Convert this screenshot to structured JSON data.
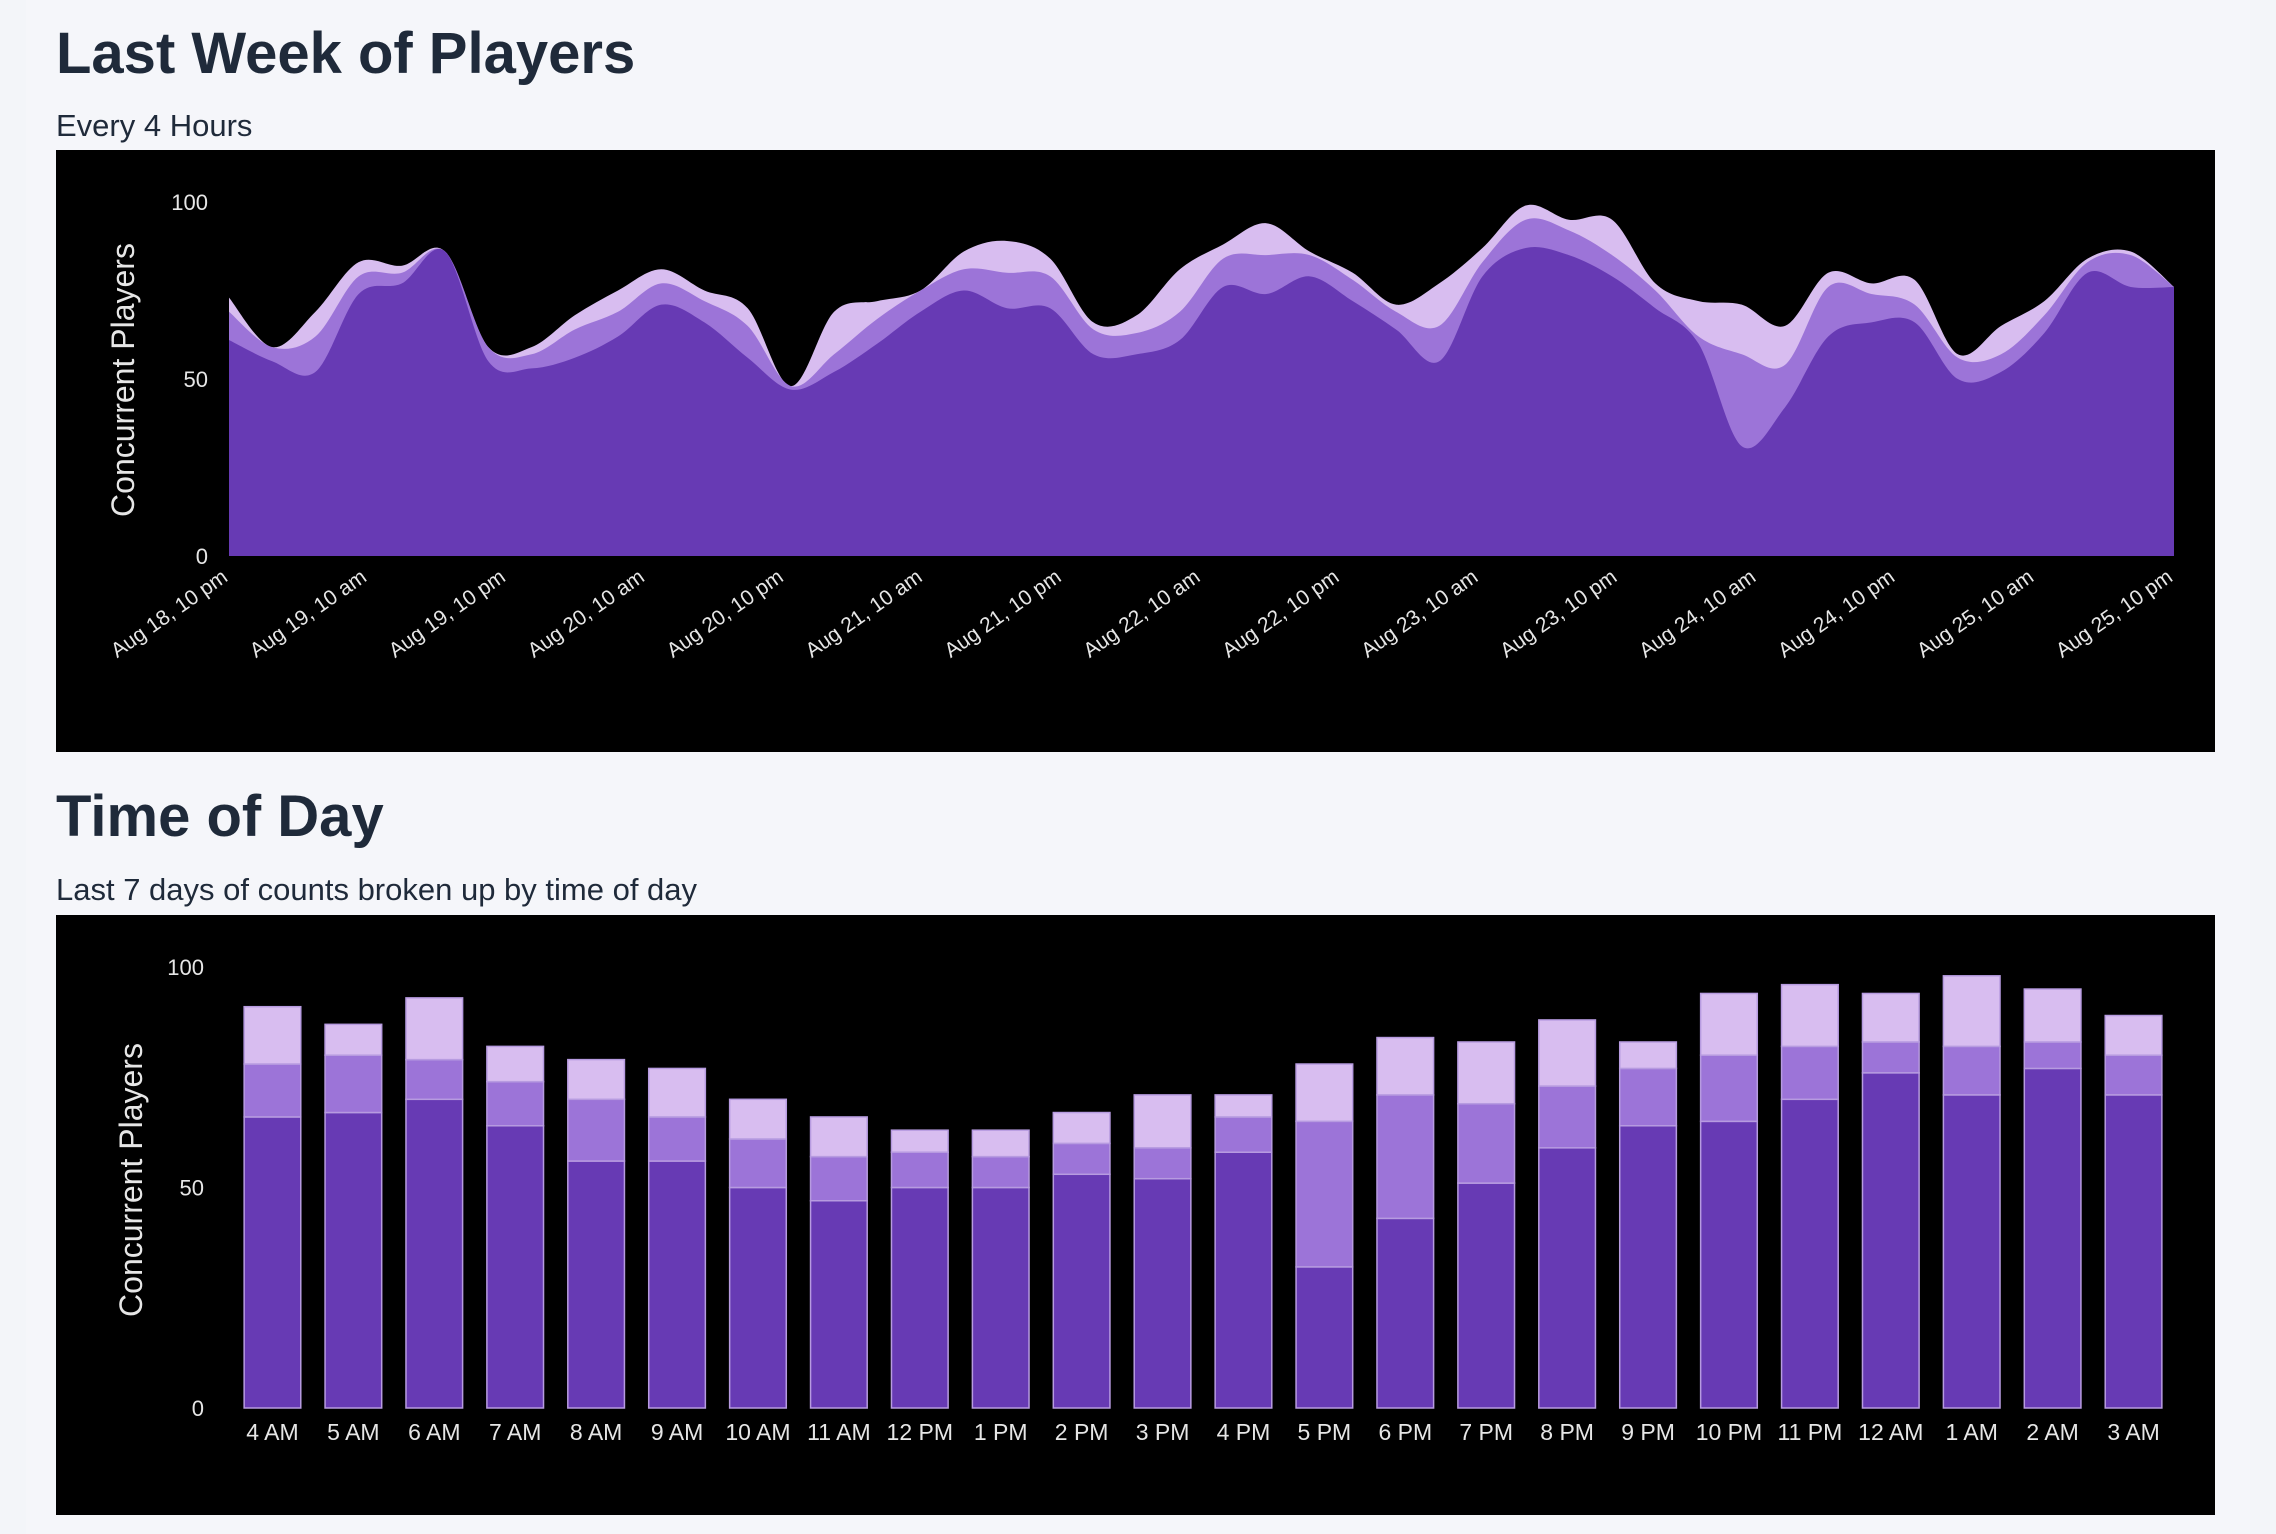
{
  "sections": {
    "week": {
      "title": "Last Week of Players",
      "subtitle": "Every 4 Hours"
    },
    "tod": {
      "title": "Time of Day",
      "subtitle": "Last 7 days of counts broken up by time of day"
    }
  },
  "colors": {
    "panel_bg": "#000000",
    "base": "#673ab4",
    "mid": "#9c74d8",
    "top": "#d8bdf0",
    "axis_text": "#e6e6e6"
  },
  "chart_data": [
    {
      "type": "area",
      "stacked": true,
      "ylabel": "Concurrent Players",
      "ylim": [
        0,
        100
      ],
      "yticks": [
        0,
        50,
        100
      ],
      "grid": false,
      "x_ticks": [
        "Aug 18, 10 pm",
        "Aug 19, 10 am",
        "Aug 19, 10 pm",
        "Aug 20, 10 am",
        "Aug 20, 10 pm",
        "Aug 21, 10 am",
        "Aug 21, 10 pm",
        "Aug 22, 10 am",
        "Aug 22, 10 pm",
        "Aug 23, 10 am",
        "Aug 23, 10 pm",
        "Aug 24, 10 am",
        "Aug 24, 10 pm",
        "Aug 25, 10 am",
        "Aug 25, 10 pm"
      ],
      "x_ticks_rotation": -35,
      "series": [
        {
          "values": [
            61,
            55,
            52,
            74,
            77,
            86,
            55,
            53,
            56,
            62,
            71,
            66,
            56,
            47,
            52,
            60,
            69,
            75,
            70,
            70,
            57,
            57,
            61,
            76,
            74,
            79,
            72,
            64,
            55,
            79,
            87,
            85,
            79,
            70,
            60,
            31,
            42,
            62,
            66,
            66,
            50,
            52,
            63,
            80,
            76,
            76
          ]
        },
        {
          "values": [
            8,
            4,
            10,
            5,
            3,
            0,
            4,
            4,
            8,
            7,
            6,
            6,
            9,
            1,
            5,
            7,
            6,
            6,
            10,
            9,
            7,
            6,
            8,
            8,
            11,
            6,
            6,
            5,
            10,
            4,
            8,
            7,
            6,
            5,
            2,
            26,
            12,
            14,
            8,
            5,
            6,
            5,
            5,
            3,
            9,
            0
          ]
        },
        {
          "values": [
            4,
            0,
            7,
            4,
            2,
            0,
            0,
            2,
            4,
            6,
            4,
            3,
            5,
            0,
            12,
            5,
            0,
            5,
            9,
            5,
            2,
            5,
            12,
            4,
            9,
            1,
            2,
            2,
            12,
            4,
            4,
            3,
            10,
            2,
            10,
            14,
            11,
            4,
            3,
            7,
            1,
            8,
            4,
            1,
            1,
            0
          ]
        }
      ]
    },
    {
      "type": "bar",
      "stacked": true,
      "ylabel": "Concurrent Players",
      "ylim": [
        0,
        100
      ],
      "yticks": [
        0,
        50,
        100
      ],
      "grid": false,
      "categories": [
        "4 AM",
        "5 AM",
        "6 AM",
        "7 AM",
        "8 AM",
        "9 AM",
        "10 AM",
        "11 AM",
        "12 PM",
        "1 PM",
        "2 PM",
        "3 PM",
        "4 PM",
        "5 PM",
        "6 PM",
        "7 PM",
        "8 PM",
        "9 PM",
        "10 PM",
        "11 PM",
        "12 AM",
        "1 AM",
        "2 AM",
        "3 AM"
      ],
      "series": [
        {
          "values": [
            66,
            67,
            70,
            64,
            56,
            56,
            50,
            47,
            50,
            50,
            53,
            52,
            58,
            32,
            43,
            51,
            59,
            64,
            65,
            70,
            76,
            71,
            77,
            71
          ]
        },
        {
          "values": [
            12,
            13,
            9,
            10,
            14,
            10,
            11,
            10,
            8,
            7,
            7,
            7,
            8,
            33,
            28,
            18,
            14,
            13,
            15,
            12,
            7,
            11,
            6,
            9
          ]
        },
        {
          "values": [
            13,
            7,
            14,
            8,
            9,
            11,
            9,
            9,
            5,
            6,
            7,
            12,
            5,
            13,
            13,
            14,
            15,
            6,
            14,
            14,
            11,
            16,
            12,
            9
          ]
        }
      ]
    }
  ]
}
